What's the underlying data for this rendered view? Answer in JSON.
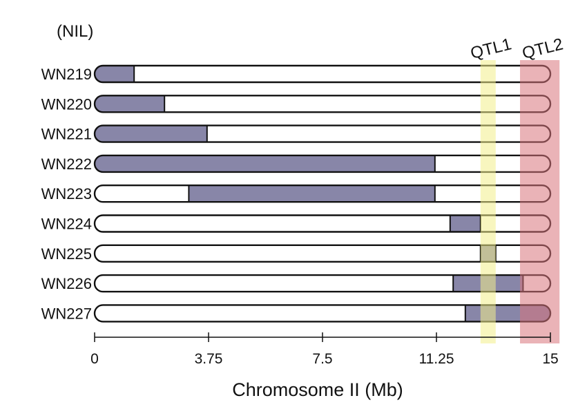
{
  "chart_data": {
    "type": "bar",
    "title": "",
    "group_label": "(NIL)",
    "xlabel": "Chromosome II (Mb)",
    "xlim": [
      0,
      15
    ],
    "xticks": [
      0,
      3.75,
      7.5,
      11.25,
      15
    ],
    "xtick_labels": [
      "0",
      "3.75",
      "7.5",
      "11.25",
      "15"
    ],
    "chromosome_length": 15,
    "lines": [
      {
        "name": "WN219",
        "introgression": [
          0,
          1.3
        ]
      },
      {
        "name": "WN220",
        "introgression": [
          0,
          2.3
        ]
      },
      {
        "name": "WN221",
        "introgression": [
          0,
          3.7
        ]
      },
      {
        "name": "WN222",
        "introgression": [
          0,
          11.2
        ]
      },
      {
        "name": "WN223",
        "introgression": [
          3.1,
          11.2
        ]
      },
      {
        "name": "WN224",
        "introgression": [
          11.7,
          12.7
        ]
      },
      {
        "name": "WN225",
        "introgression": [
          12.7,
          13.2
        ]
      },
      {
        "name": "WN226",
        "introgression": [
          11.8,
          14.1
        ]
      },
      {
        "name": "WN227",
        "introgression": [
          12.2,
          15
        ]
      }
    ],
    "qtl_regions": [
      {
        "name": "QTL1",
        "range": [
          12.7,
          13.2
        ],
        "color": "#f2ee8a"
      },
      {
        "name": "QTL2",
        "range": [
          14.0,
          15.3
        ],
        "color": "#d9757c"
      }
    ],
    "colors": {
      "introgression": "#8886a8",
      "background": "#ffffff",
      "outline": "#111111"
    }
  }
}
